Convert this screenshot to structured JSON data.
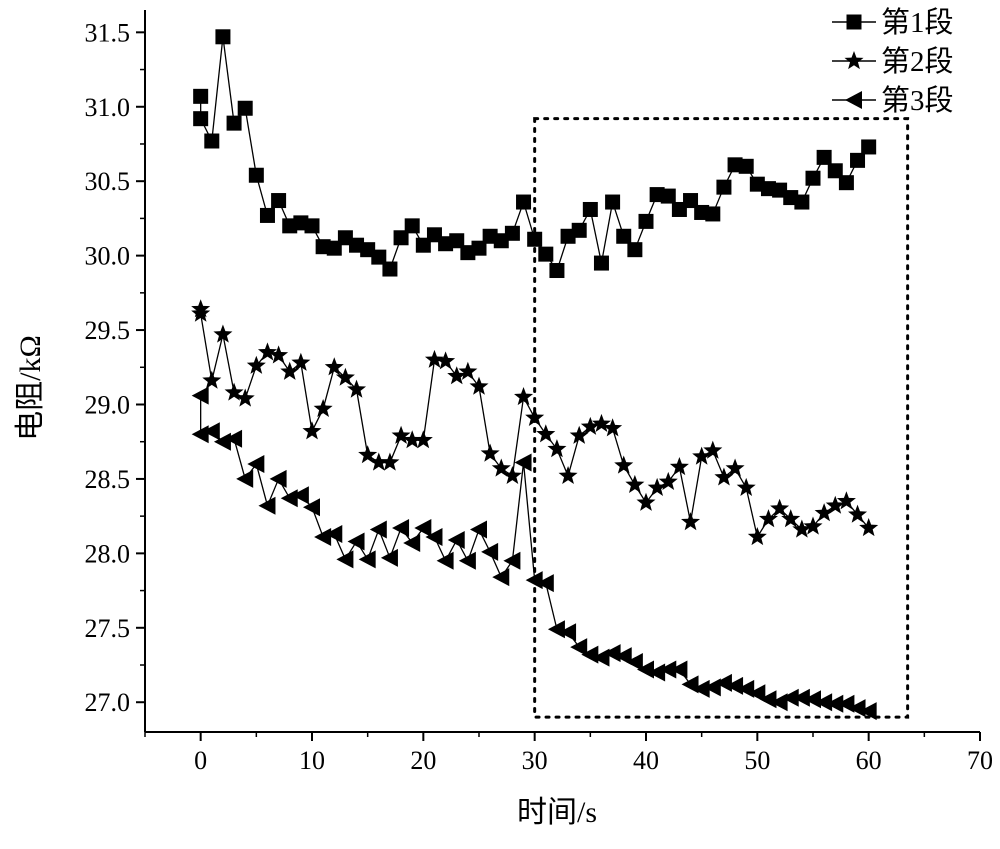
{
  "chart_data": {
    "type": "line",
    "title": "",
    "xlabel": "时间/s",
    "ylabel": "电阻/kΩ",
    "xlim": [
      -5,
      70
    ],
    "ylim": [
      26.8,
      31.65
    ],
    "x_ticks": [
      0,
      10,
      20,
      30,
      40,
      50,
      60,
      70
    ],
    "y_ticks": [
      27.0,
      27.5,
      28.0,
      28.5,
      29.0,
      29.5,
      30.0,
      30.5,
      31.0,
      31.5
    ],
    "x_tick_labels": [
      "0",
      "10",
      "20",
      "30",
      "40",
      "50",
      "60",
      "70"
    ],
    "y_tick_labels": [
      "27.0",
      "27.5",
      "28.0",
      "28.5",
      "29.0",
      "29.5",
      "30.0",
      "30.5",
      "31.0",
      "31.5"
    ],
    "grid": false,
    "legend_position": "top-right",
    "highlight_box": {
      "x": [
        30,
        63.5
      ],
      "y": [
        26.9,
        30.92
      ],
      "style": "dotted"
    },
    "series": [
      {
        "name": "第1段",
        "marker": "square",
        "color": "#000000",
        "x": [
          0,
          0,
          1,
          2,
          3,
          4,
          5,
          6,
          7,
          8,
          9,
          10,
          11,
          12,
          13,
          14,
          15,
          16,
          17,
          18,
          19,
          20,
          21,
          22,
          23,
          24,
          25,
          26,
          27,
          28,
          29,
          30,
          31,
          32,
          33,
          34,
          35,
          36,
          37,
          38,
          39,
          40,
          41,
          42,
          43,
          44,
          45,
          46,
          47,
          48,
          49,
          50,
          51,
          52,
          53,
          54,
          55,
          56,
          57,
          58,
          59,
          60
        ],
        "y": [
          31.07,
          30.92,
          30.77,
          31.47,
          30.89,
          30.99,
          30.54,
          30.27,
          30.37,
          30.2,
          30.22,
          30.2,
          30.06,
          30.05,
          30.12,
          30.07,
          30.04,
          29.99,
          29.91,
          30.12,
          30.2,
          30.07,
          30.14,
          30.08,
          30.1,
          30.02,
          30.05,
          30.13,
          30.1,
          30.15,
          30.36,
          30.11,
          30.01,
          29.9,
          30.13,
          30.17,
          30.31,
          29.95,
          30.36,
          30.13,
          30.04,
          30.23,
          30.41,
          30.4,
          30.31,
          30.37,
          30.29,
          30.28,
          30.46,
          30.61,
          30.6,
          30.48,
          30.45,
          30.44,
          30.39,
          30.36,
          30.52,
          30.66,
          30.57,
          30.49,
          30.64,
          30.73
        ]
      },
      {
        "name": "第2段",
        "marker": "star",
        "color": "#000000",
        "x": [
          0,
          0,
          1,
          2,
          3,
          4,
          5,
          6,
          7,
          8,
          9,
          10,
          11,
          12,
          13,
          14,
          15,
          16,
          17,
          18,
          19,
          20,
          21,
          22,
          23,
          24,
          25,
          26,
          27,
          28,
          29,
          30,
          31,
          32,
          33,
          34,
          35,
          36,
          37,
          38,
          39,
          40,
          41,
          42,
          43,
          44,
          45,
          46,
          47,
          48,
          49,
          50,
          51,
          52,
          53,
          54,
          55,
          56,
          57,
          58,
          59,
          60
        ],
        "y": [
          29.64,
          29.61,
          29.16,
          29.47,
          29.08,
          29.04,
          29.26,
          29.35,
          29.33,
          29.22,
          29.28,
          28.82,
          28.97,
          29.25,
          29.18,
          29.1,
          28.66,
          28.61,
          28.61,
          28.79,
          28.76,
          28.76,
          29.3,
          29.29,
          29.19,
          29.22,
          29.12,
          28.67,
          28.57,
          28.52,
          29.05,
          28.91,
          28.8,
          28.7,
          28.52,
          28.79,
          28.85,
          28.87,
          28.84,
          28.59,
          28.46,
          28.34,
          28.44,
          28.48,
          28.58,
          28.21,
          28.65,
          28.69,
          28.51,
          28.57,
          28.44,
          28.11,
          28.23,
          28.3,
          28.23,
          28.16,
          28.18,
          28.27,
          28.32,
          28.35,
          28.26,
          28.17
        ]
      },
      {
        "name": "第3段",
        "marker": "triangle-left",
        "color": "#000000",
        "x": [
          0,
          0,
          1,
          2,
          3,
          4,
          5,
          6,
          7,
          8,
          9,
          10,
          11,
          12,
          13,
          14,
          15,
          16,
          17,
          18,
          19,
          20,
          21,
          22,
          23,
          24,
          25,
          26,
          27,
          28,
          29,
          30,
          31,
          32,
          33,
          34,
          35,
          36,
          37,
          38,
          39,
          40,
          41,
          42,
          43,
          44,
          45,
          46,
          47,
          48,
          49,
          50,
          51,
          52,
          53,
          54,
          55,
          56,
          57,
          58,
          59,
          60
        ],
        "y": [
          29.06,
          28.8,
          28.82,
          28.75,
          28.77,
          28.5,
          28.6,
          28.32,
          28.5,
          28.37,
          28.39,
          28.31,
          28.11,
          28.13,
          27.96,
          28.08,
          27.96,
          28.16,
          27.97,
          28.17,
          28.07,
          28.17,
          28.11,
          27.95,
          28.09,
          27.95,
          28.16,
          28.01,
          27.84,
          27.95,
          28.61,
          27.82,
          27.8,
          27.49,
          27.47,
          27.37,
          27.32,
          27.3,
          27.33,
          27.31,
          27.27,
          27.22,
          27.2,
          27.22,
          27.22,
          27.12,
          27.09,
          27.1,
          27.13,
          27.11,
          27.09,
          27.06,
          27.02,
          27.0,
          27.03,
          27.03,
          27.02,
          27.0,
          26.99,
          26.99,
          26.96,
          26.94
        ]
      }
    ]
  }
}
